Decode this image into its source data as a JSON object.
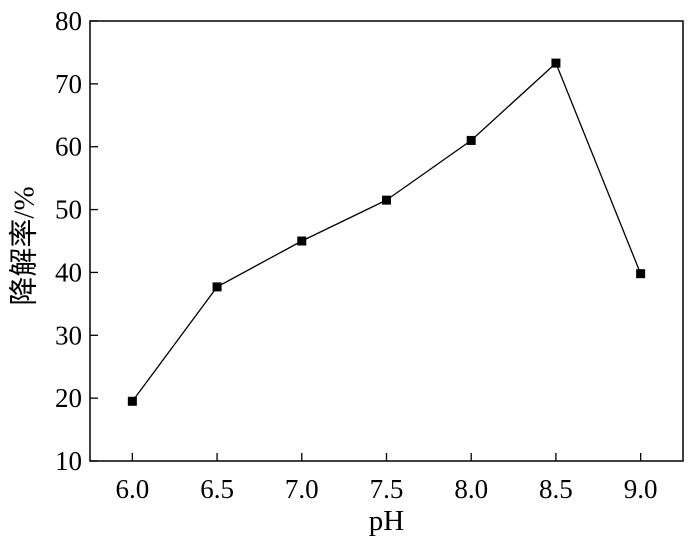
{
  "chart_data": {
    "type": "line",
    "title": "",
    "xlabel": "pH",
    "ylabel": "降解率/%",
    "x": [
      6.0,
      6.5,
      7.0,
      7.5,
      8.0,
      8.5,
      9.0
    ],
    "series": [
      {
        "values": [
          19.5,
          37.7,
          45.0,
          51.5,
          61.0,
          73.3,
          39.8
        ]
      }
    ],
    "xticks": [
      6.0,
      6.5,
      7.0,
      7.5,
      8.0,
      8.5,
      9.0
    ],
    "xtick_labels": [
      "6.0",
      "6.5",
      "7.0",
      "7.5",
      "8.0",
      "8.5",
      "9.0"
    ],
    "yticks": [
      10,
      20,
      30,
      40,
      50,
      60,
      70,
      80
    ],
    "ytick_labels": [
      "10",
      "20",
      "30",
      "40",
      "50",
      "60",
      "70",
      "80"
    ],
    "xlim": [
      5.75,
      9.25
    ],
    "ylim": [
      10,
      80
    ],
    "grid": false,
    "legend": "none",
    "marker": "square",
    "line_color": "#000000",
    "marker_color": "#000000"
  }
}
